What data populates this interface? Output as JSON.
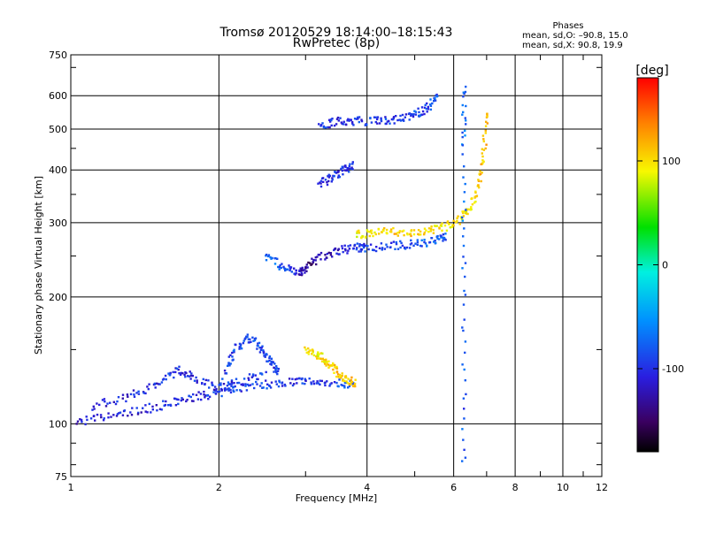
{
  "header": {
    "title": "Tromsø 20120529 18:14:00–18:15:43",
    "subtitle": "RwPretec (8p)",
    "phases_title": "Phases",
    "phases_line1": "mean, sd,O: –90.8, 15.0",
    "phases_line2": "mean, sd,X:  90.8, 19.9"
  },
  "colorbar": {
    "label": "[deg]",
    "range": [
      -180,
      180
    ],
    "ticks": [
      100,
      0,
      -100
    ],
    "tick_labels": [
      "100",
      "0",
      "-100"
    ]
  },
  "chart_data": {
    "type": "scatter",
    "xlabel": "Frequency [MHz]",
    "ylabel": "Stationary phase Virtual Height [km]",
    "xscale": "log",
    "yscale": "log",
    "xlim": [
      1,
      12
    ],
    "ylim": [
      75,
      750
    ],
    "x_ticks": [
      1,
      2,
      4,
      6,
      8,
      10,
      12
    ],
    "x_tick_labels": [
      "1",
      "2",
      "4",
      "6",
      "8",
      "10",
      "12"
    ],
    "y_ticks": [
      75,
      100,
      200,
      300,
      400,
      500,
      600,
      750
    ],
    "y_tick_labels": [
      "75",
      "100",
      "200",
      "300",
      "400",
      "500",
      "600",
      "750"
    ],
    "grid": true,
    "color_variable": "phase [deg]",
    "traces": [
      {
        "x": [
          1.02,
          1.2,
          1.4,
          1.6,
          1.8,
          2.0,
          2.2,
          2.5,
          2.8,
          3.1,
          3.5,
          3.8
        ],
        "y": [
          101,
          104,
          108,
          112,
          116,
          118,
          122,
          124,
          126,
          126,
          125,
          124
        ],
        "phase": [
          -115,
          -110,
          -108,
          -105,
          -105,
          -100,
          -100,
          -95,
          -100,
          -105,
          -95,
          -90
        ]
      },
      {
        "x": [
          1.1,
          1.3,
          1.5,
          1.65,
          1.8,
          2.0,
          2.2,
          2.5
        ],
        "y": [
          110,
          116,
          124,
          134,
          128,
          122,
          126,
          132
        ],
        "phase": [
          -110,
          -108,
          -105,
          -100,
          -105,
          -102,
          -100,
          -98
        ]
      },
      {
        "x": [
          2.05,
          2.15,
          2.3,
          2.45,
          2.55,
          2.65
        ],
        "y": [
          130,
          150,
          160,
          150,
          140,
          132
        ],
        "phase": [
          -100,
          -95,
          -90,
          -95,
          -100,
          -95
        ]
      },
      {
        "x": [
          3.0,
          3.2,
          3.35,
          3.5,
          3.65,
          3.8
        ],
        "y": [
          150,
          145,
          138,
          132,
          127,
          124
        ],
        "phase": [
          90,
          95,
          105,
          110,
          110,
          115
        ]
      },
      {
        "x": [
          2.5,
          2.7,
          2.9,
          3.0,
          3.2,
          3.5,
          3.8,
          4.0,
          4.5,
          5.0,
          5.5,
          5.8
        ],
        "y": [
          250,
          235,
          228,
          232,
          248,
          258,
          262,
          262,
          264,
          267,
          272,
          278
        ],
        "phase": [
          -85,
          -80,
          -120,
          -140,
          -135,
          -115,
          -100,
          -95,
          -100,
          -90,
          -80,
          -85
        ]
      },
      {
        "x": [
          3.8,
          4.1,
          4.5,
          5.0,
          5.5,
          6.0,
          6.4,
          6.7,
          6.9,
          7.0
        ],
        "y": [
          280,
          284,
          285,
          284,
          288,
          298,
          318,
          355,
          430,
          560
        ],
        "phase": [
          85,
          100,
          110,
          105,
          100,
          95,
          90,
          110,
          115,
          120
        ]
      },
      {
        "x": [
          3.2,
          3.4,
          3.6,
          3.75
        ],
        "y": [
          370,
          385,
          400,
          410
        ],
        "phase": [
          -110,
          -105,
          -100,
          -100
        ]
      },
      {
        "x": [
          3.2,
          3.5,
          3.8,
          4.2,
          4.6,
          5.0,
          5.3,
          5.6
        ],
        "y": [
          510,
          520,
          522,
          522,
          526,
          540,
          560,
          600
        ],
        "phase": [
          -100,
          -105,
          -100,
          -95,
          -100,
          -95,
          -90,
          -90
        ]
      },
      {
        "x": [
          6.3,
          6.3,
          6.3,
          6.3
        ],
        "y": [
          80,
          200,
          450,
          650
        ],
        "phase": [
          -90,
          -80,
          -70,
          -95
        ]
      }
    ]
  }
}
